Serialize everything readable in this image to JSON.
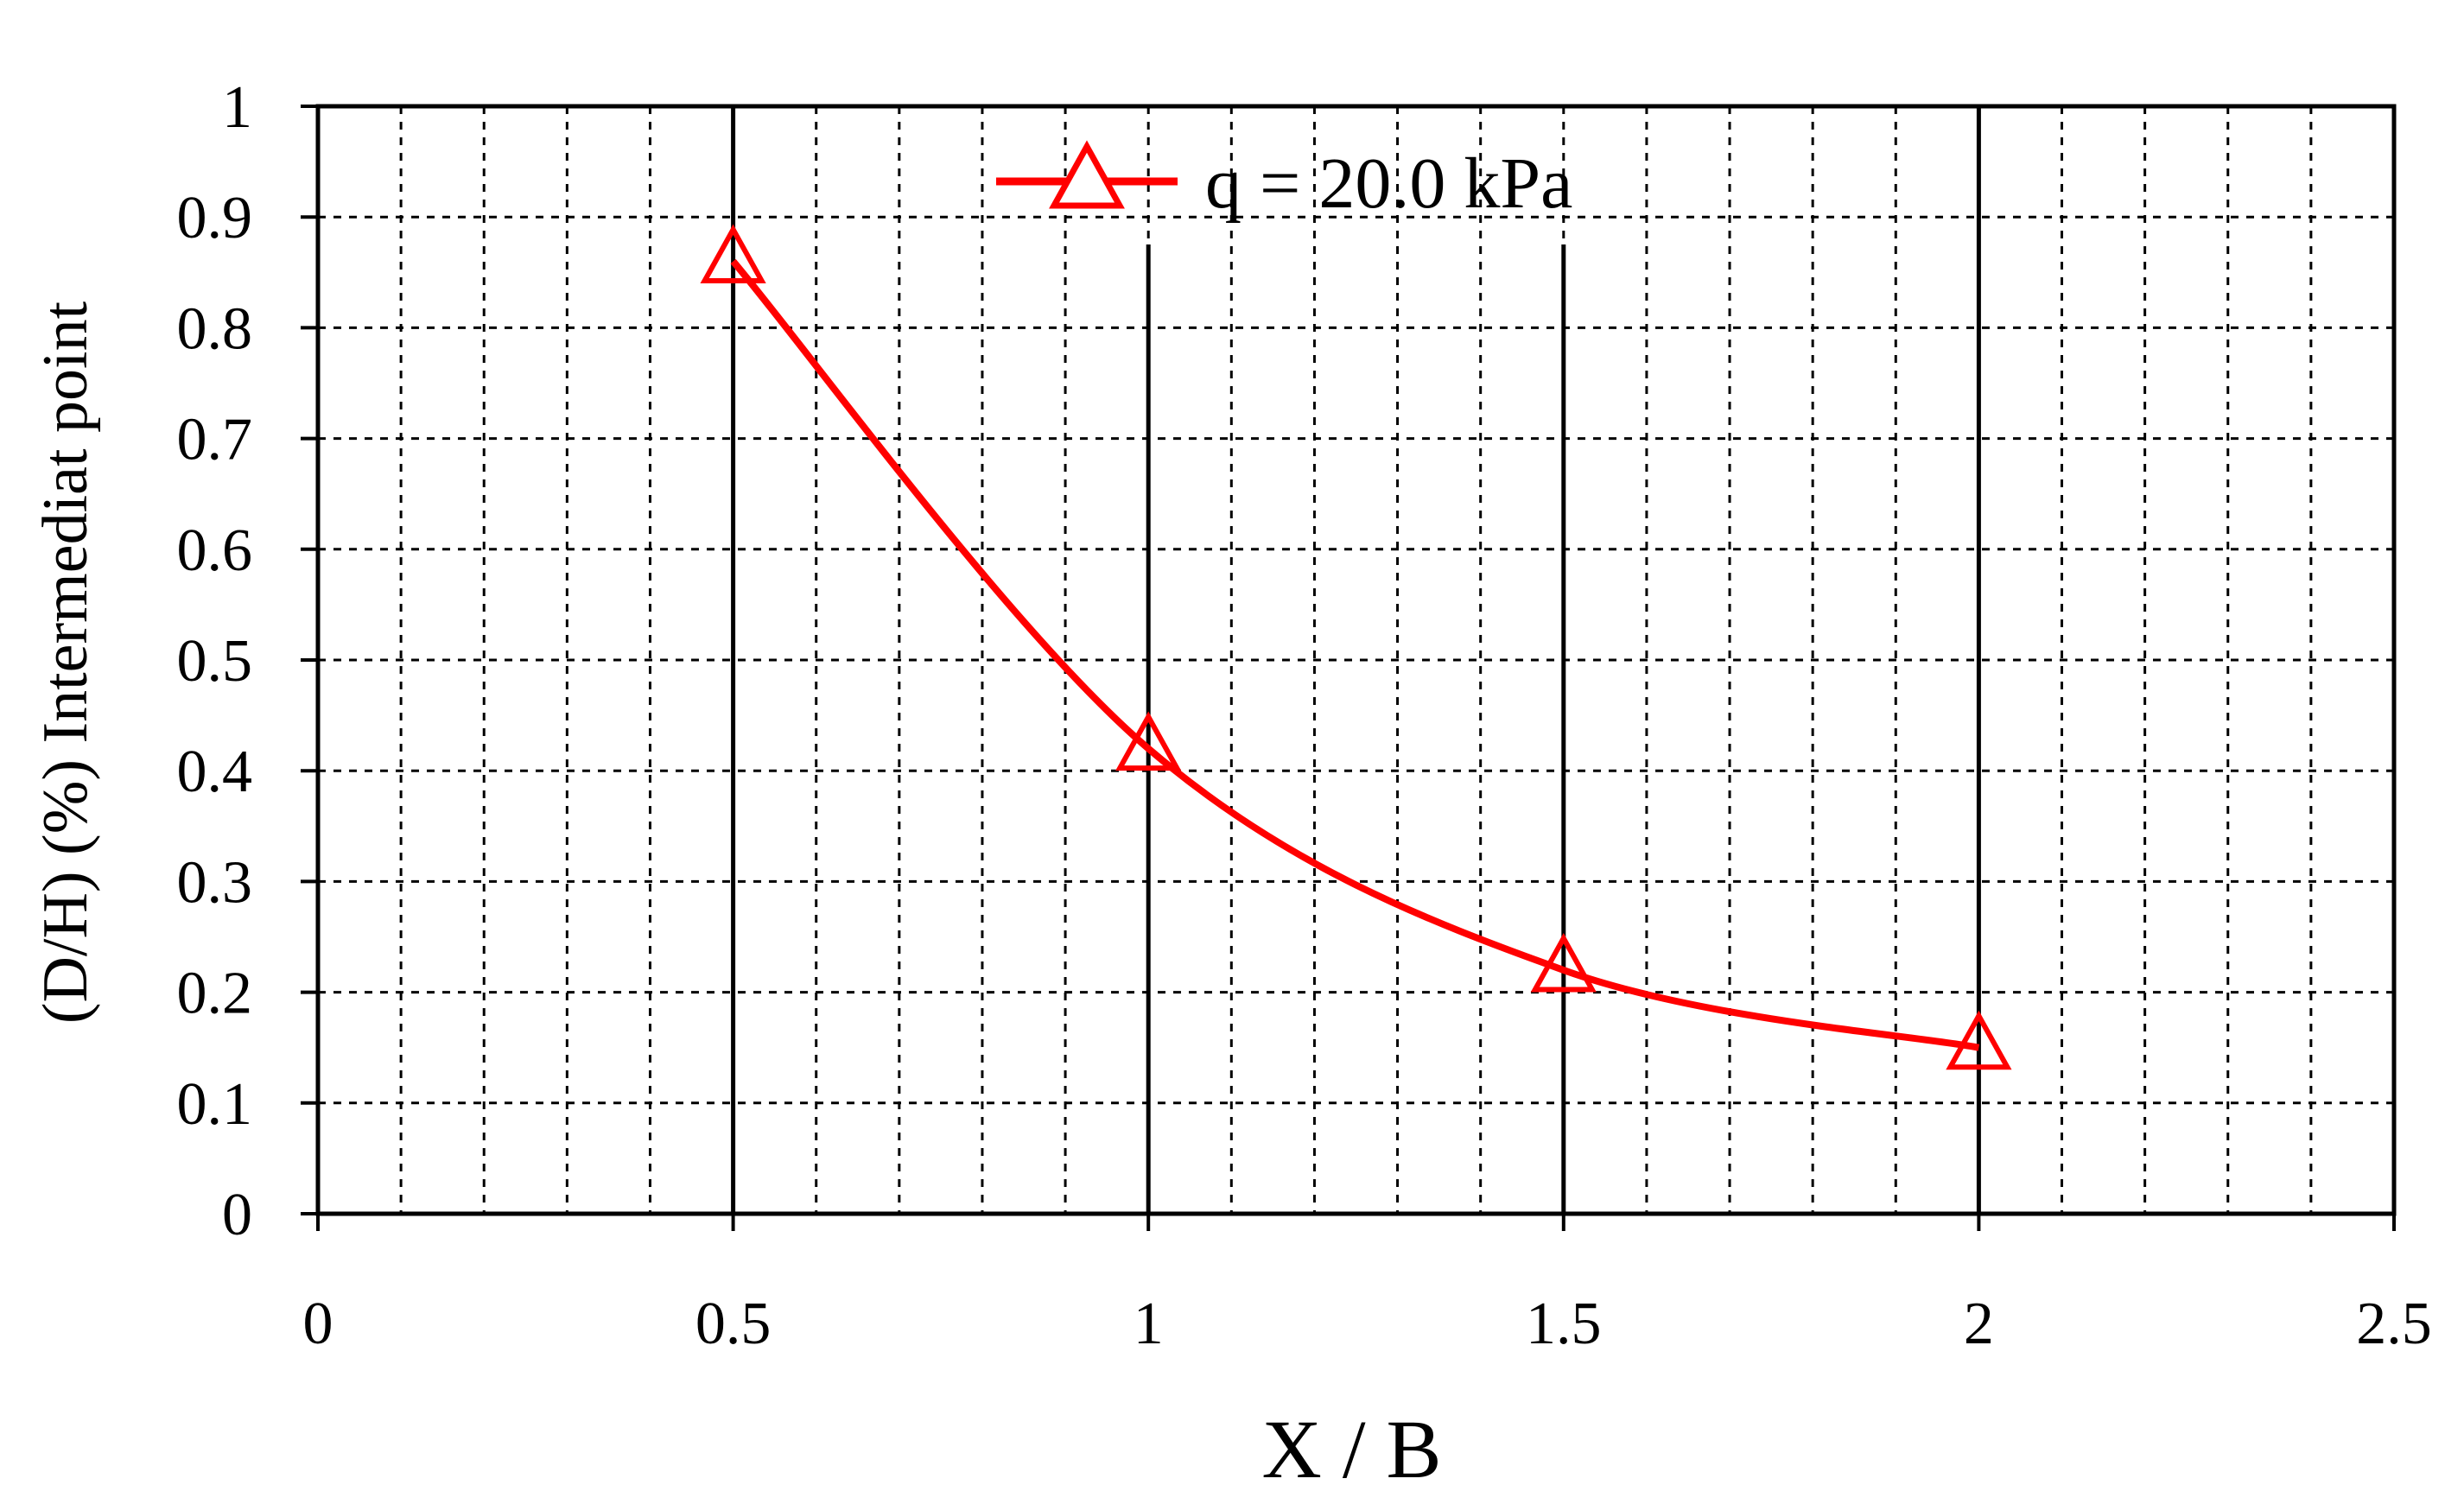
{
  "chart_data": {
    "type": "line",
    "title": "",
    "xlabel": "X / B",
    "ylabel": "(D/H) (%) Intermediat point",
    "xlim": [
      0,
      2.5
    ],
    "ylim": [
      0,
      1
    ],
    "x_ticks": [
      "0",
      "0.5",
      "1",
      "1.5",
      "2",
      "2.5"
    ],
    "y_ticks": [
      "0",
      "0.1",
      "0.2",
      "0.3",
      "0.4",
      "0.5",
      "0.6",
      "0.7",
      "0.8",
      "0.9",
      "1"
    ],
    "grid": true,
    "legend_position": "top-center",
    "series": [
      {
        "name": "q = 20.0 kPa",
        "color": "#ff0000",
        "marker": "triangle-open",
        "x": [
          0.5,
          1,
          1.5,
          2
        ],
        "y": [
          0.86,
          0.42,
          0.22,
          0.15
        ]
      }
    ]
  }
}
